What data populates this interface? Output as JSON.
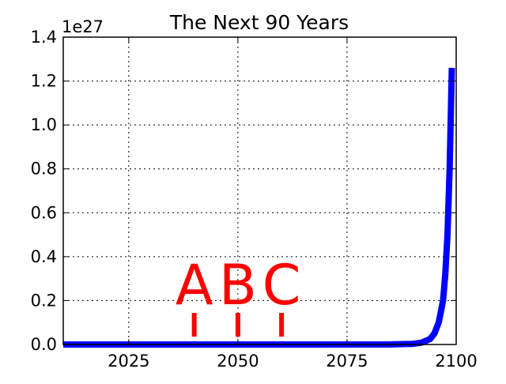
{
  "chart_data": {
    "type": "line",
    "title": "The Next 90 Years",
    "xlabel": "",
    "ylabel": "",
    "y_offset_label": "1e27",
    "xlim": [
      2010,
      2100
    ],
    "ylim": [
      0,
      1.4
    ],
    "x_ticks": [
      2025,
      2050,
      2075,
      2100
    ],
    "y_ticks": [
      "0.0",
      "0.2",
      "0.4",
      "0.6",
      "0.8",
      "1.0",
      "1.2",
      "1.4"
    ],
    "grid": true,
    "series": [
      {
        "color": "#0000ff",
        "x": [
          2010,
          2060,
          2085,
          2090,
          2092,
          2094,
          2095,
          2096,
          2097,
          2097.5,
          2098,
          2098.5,
          2099
        ],
        "y": [
          0,
          0,
          0.0005,
          0.003,
          0.008,
          0.025,
          0.05,
          0.1,
          0.2,
          0.32,
          0.5,
          0.8,
          1.26
        ]
      }
    ],
    "annotations": [
      {
        "text": "A",
        "x": 2040,
        "color": "#ff0000"
      },
      {
        "text": "B",
        "x": 2050,
        "color": "#ff0000"
      },
      {
        "text": "C",
        "x": 2060,
        "color": "#ff0000"
      }
    ]
  }
}
